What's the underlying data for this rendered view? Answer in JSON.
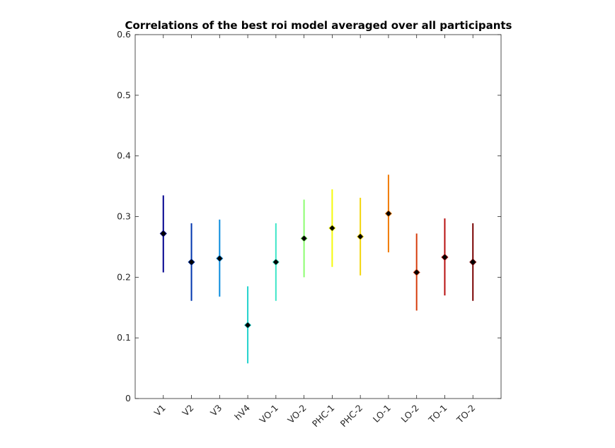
{
  "chart_data": {
    "type": "scatter",
    "title": "Correlations of the best roi model averaged over all participants",
    "xlabel": "",
    "ylabel": "",
    "ylim": [
      0,
      0.6
    ],
    "yticks": [
      "0",
      "0.1",
      "0.2",
      "0.3",
      "0.4",
      "0.5",
      "0.6"
    ],
    "grid": false,
    "legend": "none",
    "categories": [
      "V1",
      "V2",
      "V3",
      "hV4",
      "VO-1",
      "VO-2",
      "PHC-1",
      "PHC-2",
      "LO-1",
      "LO-2",
      "TO-1",
      "TO-2"
    ],
    "values": [
      0.272,
      0.225,
      0.231,
      0.121,
      0.225,
      0.264,
      0.281,
      0.267,
      0.305,
      0.208,
      0.233,
      0.225
    ],
    "error_low": [
      0.208,
      0.161,
      0.168,
      0.058,
      0.161,
      0.2,
      0.217,
      0.203,
      0.241,
      0.145,
      0.17,
      0.161
    ],
    "error_high": [
      0.335,
      0.289,
      0.295,
      0.185,
      0.289,
      0.328,
      0.345,
      0.331,
      0.369,
      0.272,
      0.297,
      0.289
    ],
    "colors": [
      "#00008f",
      "#0035ae",
      "#0a8cde",
      "#22d3cd",
      "#3ee6c8",
      "#8cfd70",
      "#f5fb0c",
      "#f3d50a",
      "#f07a00",
      "#d63c0c",
      "#b81010",
      "#7a0000"
    ],
    "marker_color": "#000000"
  }
}
